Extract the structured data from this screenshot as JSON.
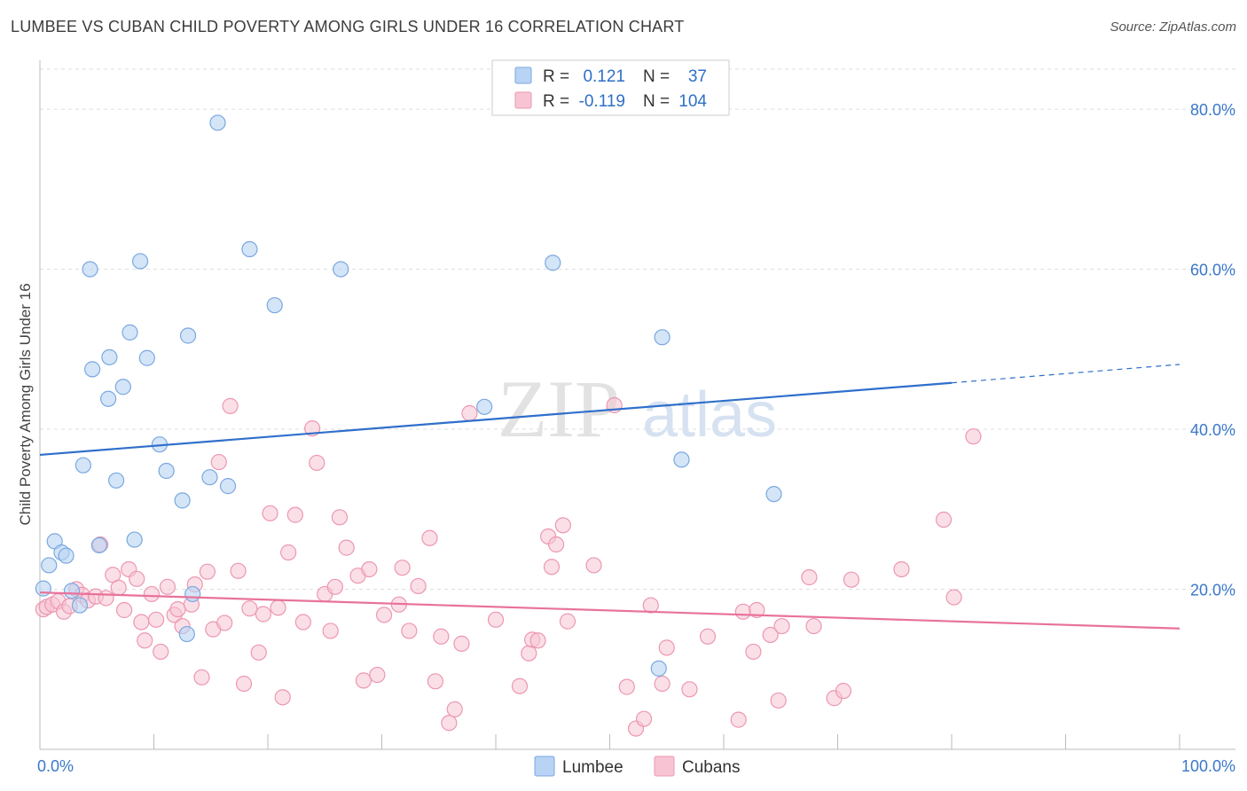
{
  "title": "LUMBEE VS CUBAN CHILD POVERTY AMONG GIRLS UNDER 16 CORRELATION CHART",
  "source": "Source: ZipAtlas.com",
  "watermark": {
    "zip": "ZIP",
    "atlas": "atlas"
  },
  "colors": {
    "lumbee_fill": "#b8d3f3",
    "lumbee_stroke": "#7aa8e0",
    "lumbee_line": "#2f6fcb",
    "cubans_fill": "#f8c4d4",
    "cubans_stroke": "#ec97b2",
    "cubans_line": "#e8729b",
    "tick_text": "#3a78c9",
    "grid": "#dddddd"
  },
  "legend": {
    "r_label": "R =",
    "n_label": "N =",
    "rows": [
      {
        "series": "Lumbee",
        "r": "0.121",
        "n": "37"
      },
      {
        "series": "Cubans",
        "r": "-0.119",
        "n": "104"
      }
    ]
  },
  "chart_data": {
    "type": "scatter",
    "title": "LUMBEE VS CUBAN CHILD POVERTY AMONG GIRLS UNDER 16 CORRELATION CHART",
    "xlabel": "",
    "ylabel": "Child Poverty Among Girls Under 16",
    "xlim": [
      0,
      100
    ],
    "ylim": [
      0,
      85
    ],
    "x_tick_labels": [
      "0.0%",
      "100.0%"
    ],
    "y_ticks": [
      20,
      40,
      60,
      80
    ],
    "y_tick_labels": [
      "20.0%",
      "40.0%",
      "60.0%",
      "80.0%"
    ],
    "grid": true,
    "series": [
      {
        "name": "Lumbee",
        "trend": {
          "x0": 0,
          "y0": 36.8,
          "x1": 80,
          "y1": 45.8,
          "dashed_to_x": 100,
          "dashed_to_y": 48.1
        },
        "points": [
          [
            0.3,
            20.1
          ],
          [
            0.8,
            23.0
          ],
          [
            1.3,
            26.0
          ],
          [
            1.9,
            24.6
          ],
          [
            2.3,
            24.2
          ],
          [
            2.8,
            19.8
          ],
          [
            3.5,
            18.0
          ],
          [
            3.8,
            35.5
          ],
          [
            4.4,
            60.0
          ],
          [
            4.6,
            47.5
          ],
          [
            5.2,
            25.5
          ],
          [
            6.0,
            43.8
          ],
          [
            6.1,
            49.0
          ],
          [
            6.7,
            33.6
          ],
          [
            7.3,
            45.3
          ],
          [
            7.9,
            52.1
          ],
          [
            8.3,
            26.2
          ],
          [
            8.8,
            61.0
          ],
          [
            9.4,
            48.9
          ],
          [
            10.5,
            38.1
          ],
          [
            11.1,
            34.8
          ],
          [
            12.5,
            31.1
          ],
          [
            12.9,
            14.4
          ],
          [
            13.0,
            51.7
          ],
          [
            13.4,
            19.4
          ],
          [
            14.9,
            34.0
          ],
          [
            16.5,
            32.9
          ],
          [
            15.6,
            78.3
          ],
          [
            18.4,
            62.5
          ],
          [
            20.6,
            55.5
          ],
          [
            26.4,
            60.0
          ],
          [
            39.0,
            42.8
          ],
          [
            45.0,
            60.8
          ],
          [
            54.3,
            10.1
          ],
          [
            54.6,
            51.5
          ],
          [
            56.3,
            36.2
          ],
          [
            64.4,
            31.9
          ]
        ]
      },
      {
        "name": "Cubans",
        "trend": {
          "x0": 0,
          "y0": 19.6,
          "x1": 100,
          "y1": 15.1
        },
        "points": [
          [
            0.3,
            17.5
          ],
          [
            0.6,
            17.8
          ],
          [
            1.1,
            18.1
          ],
          [
            1.6,
            18.5
          ],
          [
            2.1,
            17.2
          ],
          [
            2.6,
            17.9
          ],
          [
            3.2,
            20.0
          ],
          [
            3.7,
            19.3
          ],
          [
            4.2,
            18.6
          ],
          [
            4.9,
            19.1
          ],
          [
            5.3,
            25.6
          ],
          [
            5.8,
            18.9
          ],
          [
            6.4,
            21.8
          ],
          [
            6.9,
            20.2
          ],
          [
            7.4,
            17.4
          ],
          [
            7.8,
            22.5
          ],
          [
            8.5,
            21.3
          ],
          [
            8.9,
            15.9
          ],
          [
            9.2,
            13.6
          ],
          [
            9.8,
            19.4
          ],
          [
            10.2,
            16.2
          ],
          [
            10.6,
            12.2
          ],
          [
            11.2,
            20.3
          ],
          [
            11.8,
            16.8
          ],
          [
            12.1,
            17.5
          ],
          [
            12.5,
            15.4
          ],
          [
            13.3,
            18.1
          ],
          [
            13.6,
            20.6
          ],
          [
            14.2,
            9.0
          ],
          [
            14.7,
            22.2
          ],
          [
            15.2,
            15.0
          ],
          [
            15.7,
            35.9
          ],
          [
            16.2,
            15.8
          ],
          [
            16.7,
            42.9
          ],
          [
            17.4,
            22.3
          ],
          [
            17.9,
            8.2
          ],
          [
            18.4,
            17.6
          ],
          [
            19.2,
            12.1
          ],
          [
            19.6,
            16.9
          ],
          [
            20.2,
            29.5
          ],
          [
            20.9,
            17.7
          ],
          [
            21.3,
            6.5
          ],
          [
            21.8,
            24.6
          ],
          [
            22.4,
            29.3
          ],
          [
            23.1,
            15.9
          ],
          [
            23.9,
            40.1
          ],
          [
            24.3,
            35.8
          ],
          [
            25.0,
            19.4
          ],
          [
            25.5,
            14.8
          ],
          [
            25.9,
            20.3
          ],
          [
            26.3,
            29.0
          ],
          [
            26.9,
            25.2
          ],
          [
            27.9,
            21.7
          ],
          [
            28.4,
            8.6
          ],
          [
            28.9,
            22.5
          ],
          [
            29.6,
            9.3
          ],
          [
            30.2,
            16.8
          ],
          [
            31.5,
            18.1
          ],
          [
            31.8,
            22.7
          ],
          [
            32.4,
            14.8
          ],
          [
            33.2,
            20.4
          ],
          [
            34.2,
            26.4
          ],
          [
            34.7,
            8.5
          ],
          [
            35.2,
            14.1
          ],
          [
            35.9,
            3.3
          ],
          [
            36.4,
            5.0
          ],
          [
            37.0,
            13.2
          ],
          [
            37.7,
            42.0
          ],
          [
            40.0,
            16.2
          ],
          [
            42.1,
            7.9
          ],
          [
            42.9,
            12.0
          ],
          [
            43.2,
            13.7
          ],
          [
            43.7,
            13.6
          ],
          [
            44.6,
            26.6
          ],
          [
            44.9,
            22.8
          ],
          [
            45.3,
            25.6
          ],
          [
            45.9,
            28.0
          ],
          [
            46.3,
            16.0
          ],
          [
            48.6,
            23.0
          ],
          [
            50.4,
            43.0
          ],
          [
            51.5,
            7.8
          ],
          [
            52.3,
            2.6
          ],
          [
            53.0,
            3.8
          ],
          [
            53.6,
            18.0
          ],
          [
            54.6,
            8.2
          ],
          [
            55.0,
            12.7
          ],
          [
            57.0,
            7.5
          ],
          [
            58.6,
            14.1
          ],
          [
            61.3,
            3.7
          ],
          [
            61.7,
            17.2
          ],
          [
            62.6,
            12.2
          ],
          [
            62.9,
            17.4
          ],
          [
            64.1,
            14.3
          ],
          [
            64.8,
            6.1
          ],
          [
            65.1,
            15.4
          ],
          [
            67.5,
            21.5
          ],
          [
            67.9,
            15.4
          ],
          [
            69.7,
            6.4
          ],
          [
            70.5,
            7.3
          ],
          [
            71.2,
            21.2
          ],
          [
            75.6,
            22.5
          ],
          [
            79.3,
            28.7
          ],
          [
            80.2,
            19.0
          ],
          [
            81.9,
            39.1
          ]
        ]
      }
    ]
  },
  "bottom_legend": [
    {
      "label": "Lumbee"
    },
    {
      "label": "Cubans"
    }
  ]
}
